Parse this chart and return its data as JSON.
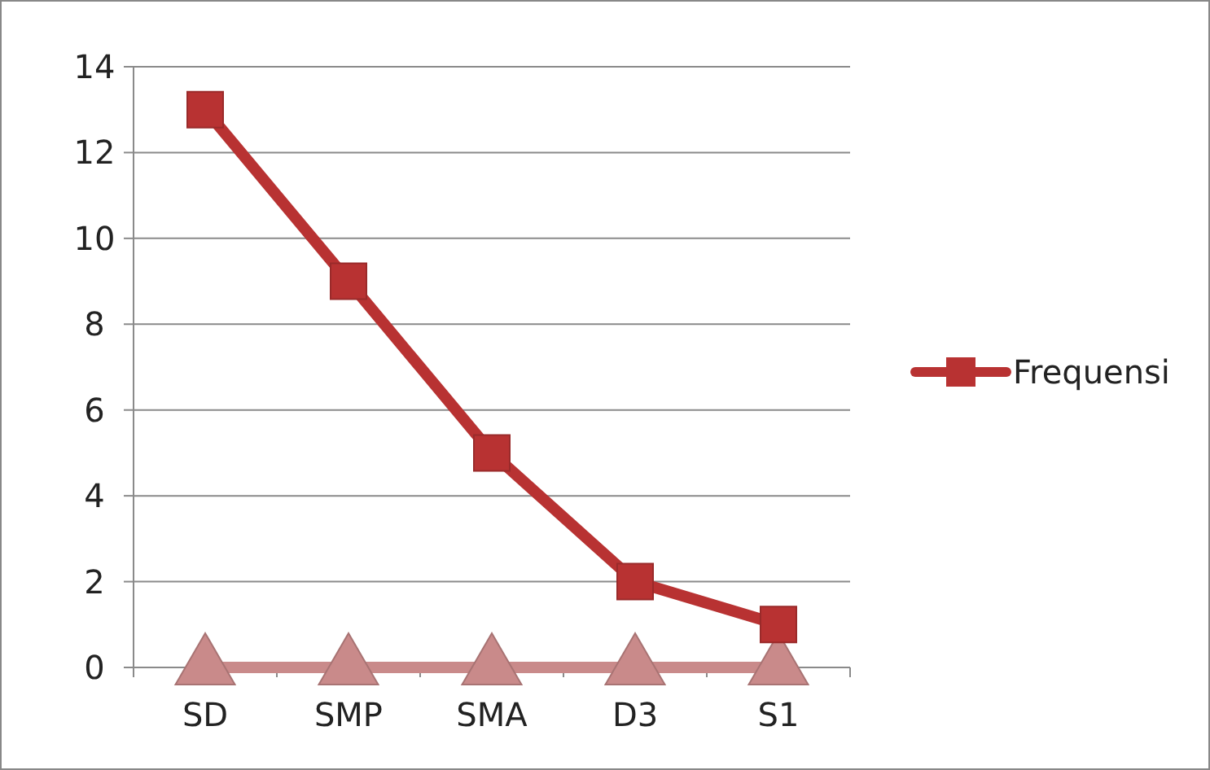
{
  "chart_data": {
    "type": "line",
    "categories": [
      "SD",
      "SMP",
      "SMA",
      "D3",
      "S1"
    ],
    "series": [
      {
        "name": "Frequensi",
        "color": "#b83232",
        "values": [
          13,
          9,
          5,
          2,
          1
        ],
        "marker": "square"
      },
      {
        "color": "#c98a8a",
        "values": [
          0,
          0,
          0,
          0,
          0
        ],
        "marker": "triangle"
      }
    ],
    "ylim": [
      0,
      14
    ],
    "yticks": [
      0,
      2,
      4,
      6,
      8,
      10,
      12,
      14
    ],
    "grid": "y",
    "legend": "right",
    "line_style": "solid"
  }
}
